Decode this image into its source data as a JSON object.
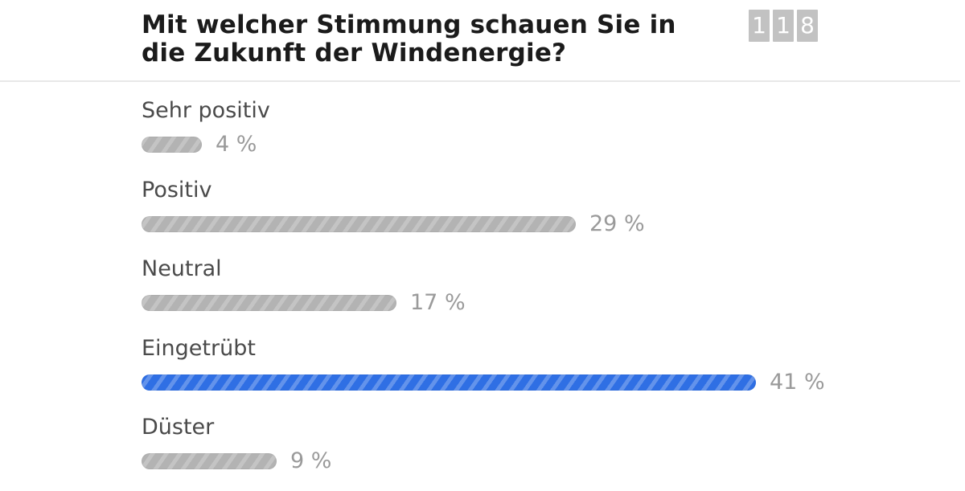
{
  "poll": {
    "question": "Mit welcher Stimmung schauen Sie in die Zukunft der Windenergie?",
    "vote_count_digits": [
      "1",
      "1",
      "8"
    ],
    "accent_color": "#2f6fe4",
    "neutral_bar_color": "#b3b3b3",
    "options": [
      {
        "label": "Sehr positiv",
        "percent_text": "4 %",
        "percent": 4,
        "leading": false
      },
      {
        "label": "Positiv",
        "percent_text": "29 %",
        "percent": 29,
        "leading": false
      },
      {
        "label": "Neutral",
        "percent_text": "17 %",
        "percent": 17,
        "leading": false
      },
      {
        "label": "Eingetrübt",
        "percent_text": "41 %",
        "percent": 41,
        "leading": true
      },
      {
        "label": "Düster",
        "percent_text": "9 %",
        "percent": 9,
        "leading": false
      }
    ]
  }
}
